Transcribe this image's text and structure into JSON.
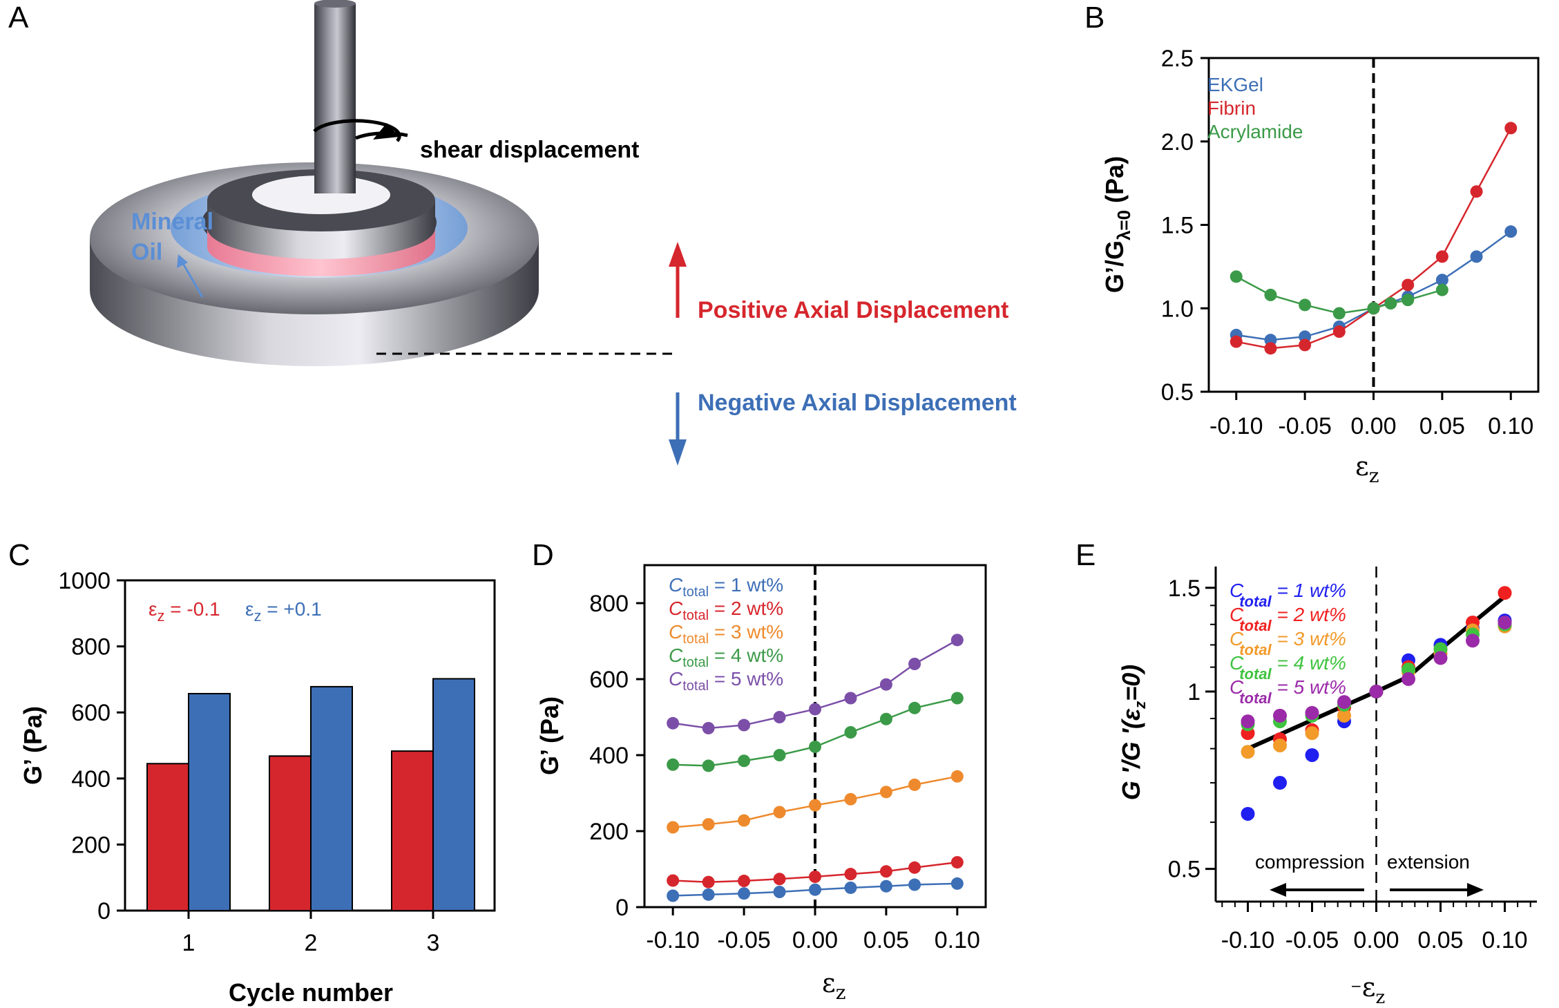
{
  "panels": [
    "A",
    "B",
    "C",
    "D",
    "E"
  ],
  "diagram": {
    "shear_label": "shear displacement",
    "oil_line1": "Mineral",
    "oil_line2": "Oil",
    "positive_label": "Positive Axial Displacement",
    "negative_label": "Negative Axial Displacement",
    "colors": {
      "positive": "#d6262d",
      "negative": "#3d6fb6",
      "oil": "#5b8fd6"
    }
  },
  "chart_data": [
    {
      "panel": "B",
      "type": "line",
      "xlabel": "ε",
      "xlabel_sub": "z",
      "ylabel_main": "G’/G",
      "ylabel_sub": "λ=0",
      "ylabel_unit": " (Pa)",
      "xlim": [
        -0.12,
        0.12
      ],
      "ylim": [
        0.5,
        2.5
      ],
      "xticks": [
        -0.1,
        -0.05,
        0.0,
        0.05,
        0.1
      ],
      "xtick_labels": [
        "-0.10",
        "-0.05",
        "0.00",
        "0.05",
        "0.10"
      ],
      "yticks": [
        0.5,
        1.0,
        1.5,
        2.0,
        2.5
      ],
      "ytick_labels": [
        "0.5",
        "1.0",
        "1.5",
        "2.0",
        "2.5"
      ],
      "zero_line": true,
      "legend_position": "top-left",
      "series": [
        {
          "name": "EKGel",
          "color": "#3d6fb6",
          "x": [
            -0.1,
            -0.075,
            -0.05,
            -0.025,
            0.0,
            0.025,
            0.05,
            0.075,
            0.1
          ],
          "y": [
            0.84,
            0.81,
            0.83,
            0.89,
            1.0,
            1.07,
            1.17,
            1.31,
            1.46
          ]
        },
        {
          "name": "Fibrin",
          "color": "#d6262d",
          "x": [
            -0.1,
            -0.075,
            -0.05,
            -0.025,
            0.0,
            0.025,
            0.05,
            0.075,
            0.1
          ],
          "y": [
            0.8,
            0.76,
            0.78,
            0.86,
            1.0,
            1.14,
            1.31,
            1.7,
            2.08
          ]
        },
        {
          "name": "Acrylamide",
          "color": "#3b9a48",
          "x": [
            -0.1,
            -0.075,
            -0.05,
            -0.025,
            0.0,
            0.0125,
            0.025,
            0.05
          ],
          "y": [
            1.19,
            1.08,
            1.02,
            0.97,
            1.0,
            1.03,
            1.05,
            1.11
          ]
        }
      ]
    },
    {
      "panel": "C",
      "type": "bar",
      "xlabel": "Cycle number",
      "ylabel": "G’ (Pa)",
      "categories": [
        "1",
        "2",
        "3"
      ],
      "ylim": [
        0,
        1000
      ],
      "yticks": [
        0,
        200,
        400,
        600,
        800,
        1000
      ],
      "legend_position": "top-left",
      "series": [
        {
          "name_sym": "ε",
          "name_sub": "z",
          "name_val": " = -0.1",
          "color": "#d6262d",
          "values": [
            445,
            468,
            483
          ]
        },
        {
          "name_sym": "ε",
          "name_sub": "z",
          "name_val": " = +0.1",
          "color": "#3d6fb6",
          "values": [
            657,
            678,
            702
          ]
        }
      ]
    },
    {
      "panel": "D",
      "type": "line",
      "xlabel": "ε",
      "xlabel_sub": "z",
      "ylabel": "G’ (Pa)",
      "xlim": [
        -0.12,
        0.12
      ],
      "ylim": [
        0,
        900
      ],
      "xticks": [
        -0.1,
        -0.05,
        0.0,
        0.05,
        0.1
      ],
      "xtick_labels": [
        "-0.10",
        "-0.05",
        "0.00",
        "0.05",
        "0.10"
      ],
      "yticks": [
        0,
        200,
        400,
        600,
        800
      ],
      "zero_line": true,
      "legend_position": "top-left",
      "series": [
        {
          "name_pre": "C",
          "name_sub": "total",
          "name_post": " = 1 wt%",
          "color": "#3d6fb6",
          "x": [
            -0.1,
            -0.075,
            -0.05,
            -0.025,
            0.0,
            0.025,
            0.05,
            0.07,
            0.1
          ],
          "y": [
            30,
            33,
            36,
            40,
            46,
            51,
            55,
            59,
            62
          ]
        },
        {
          "name_pre": "C",
          "name_sub": "total",
          "name_post": " = 2 wt%",
          "color": "#d6262d",
          "x": [
            -0.1,
            -0.075,
            -0.05,
            -0.025,
            0.0,
            0.025,
            0.05,
            0.07,
            0.1
          ],
          "y": [
            70,
            66,
            69,
            74,
            80,
            87,
            94,
            104,
            118
          ]
        },
        {
          "name_pre": "C",
          "name_sub": "total",
          "name_post": " = 3 wt%",
          "color": "#ee8a2d",
          "x": [
            -0.1,
            -0.075,
            -0.05,
            -0.025,
            0.0,
            0.025,
            0.05,
            0.07,
            0.1
          ],
          "y": [
            210,
            218,
            228,
            250,
            268,
            284,
            303,
            322,
            344
          ]
        },
        {
          "name_pre": "C",
          "name_sub": "total",
          "name_post": " = 4 wt%",
          "color": "#3b9a48",
          "x": [
            -0.1,
            -0.075,
            -0.05,
            -0.025,
            0.0,
            0.025,
            0.05,
            0.07,
            0.1
          ],
          "y": [
            375,
            372,
            385,
            400,
            422,
            460,
            495,
            524,
            550
          ]
        },
        {
          "name_pre": "C",
          "name_sub": "total",
          "name_post": " = 5 wt%",
          "color": "#7b4fa8",
          "x": [
            -0.1,
            -0.075,
            -0.05,
            -0.025,
            0.0,
            0.025,
            0.05,
            0.07,
            0.1
          ],
          "y": [
            484,
            471,
            479,
            500,
            521,
            550,
            586,
            640,
            703
          ]
        }
      ]
    },
    {
      "panel": "E",
      "type": "scatter",
      "xlabel": "ε",
      "xlabel_pre": "−",
      "xlabel_sub": "z",
      "ylabel_main": "G ′/G ′(ε",
      "ylabel_sub": "z",
      "ylabel_end": "=0)",
      "xlim": [
        -0.125,
        0.125
      ],
      "ylim": [
        0.44,
        1.63
      ],
      "log_y": true,
      "xticks": [
        -0.1,
        -0.05,
        0.0,
        0.05,
        0.1
      ],
      "xtick_labels": [
        "-0.10",
        "-0.05",
        "0.00",
        "0.05",
        "0.10"
      ],
      "yticks": [
        0.5,
        1,
        1.5
      ],
      "ytick_labels": [
        "0.5",
        "1",
        "1.5"
      ],
      "zero_line": true,
      "legend_position": "top-left",
      "annotations": {
        "left": "compression",
        "right": "extension"
      },
      "fit_line": {
        "color": "#000000",
        "x": [
          -0.1,
          0.0,
          0.025,
          0.05,
          0.1
        ],
        "y": [
          0.8,
          1.0,
          1.06,
          1.18,
          1.45
        ]
      },
      "series": [
        {
          "name_pre": "C",
          "name_sub": "total",
          "name_post": " = 1 wt%",
          "color": "#1f1ff0",
          "x": [
            -0.1,
            -0.075,
            -0.05,
            -0.025,
            0.0,
            0.025,
            0.05,
            0.075,
            0.1
          ],
          "y": [
            0.62,
            0.7,
            0.78,
            0.89,
            1.0,
            1.13,
            1.2,
            1.28,
            1.32
          ]
        },
        {
          "name_pre": "C",
          "name_sub": "total",
          "name_post": " = 2 wt%",
          "color": "#f02020",
          "x": [
            -0.1,
            -0.075,
            -0.05,
            -0.025,
            0.0,
            0.025,
            0.05,
            0.075,
            0.1
          ],
          "y": [
            0.85,
            0.83,
            0.86,
            0.94,
            1.0,
            1.1,
            1.18,
            1.31,
            1.47
          ]
        },
        {
          "name_pre": "C",
          "name_sub": "total",
          "name_post": " = 3 wt%",
          "color": "#f29a2a",
          "x": [
            -0.1,
            -0.075,
            -0.05,
            -0.025,
            0.0,
            0.025,
            0.05,
            0.075,
            0.1
          ],
          "y": [
            0.79,
            0.81,
            0.85,
            0.91,
            1.0,
            1.08,
            1.16,
            1.27,
            1.29
          ]
        },
        {
          "name_pre": "C",
          "name_sub": "total",
          "name_post": " = 4 wt%",
          "color": "#3fc23f",
          "x": [
            -0.1,
            -0.075,
            -0.05,
            -0.025,
            0.0,
            0.025,
            0.05,
            0.075,
            0.1
          ],
          "y": [
            0.88,
            0.89,
            0.91,
            0.95,
            1.0,
            1.09,
            1.18,
            1.25,
            1.3
          ]
        },
        {
          "name_pre": "C",
          "name_sub": "total",
          "name_post": " = 5 wt%",
          "color": "#9a2aa8",
          "x": [
            -0.1,
            -0.075,
            -0.05,
            -0.025,
            0.0,
            0.025,
            0.05,
            0.075,
            0.1
          ],
          "y": [
            0.89,
            0.91,
            0.92,
            0.96,
            1.0,
            1.05,
            1.14,
            1.22,
            1.31
          ]
        }
      ]
    }
  ]
}
